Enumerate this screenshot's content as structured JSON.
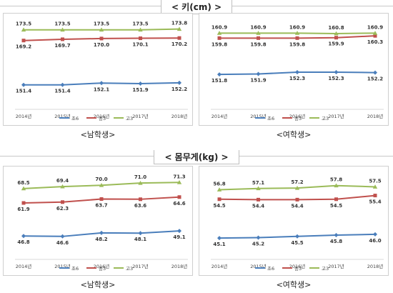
{
  "sections": [
    {
      "title": "<  키(cm)  >"
    },
    {
      "title": "<  몸무게(kg)  >"
    }
  ],
  "captions": [
    "<남학생>",
    "<여학생>",
    "<남학생>",
    "<여학생>"
  ],
  "legend": [
    "초6",
    "중3",
    "고3"
  ],
  "colors": {
    "초6": "#4a7ebb",
    "중3": "#c0504d",
    "고3": "#9bbb59"
  },
  "chart_data": [
    {
      "type": "line",
      "title": "",
      "x": [
        "2014년",
        "2015년",
        "2016년",
        "2017년",
        "2018년"
      ],
      "series": [
        {
          "name": "초6",
          "values": [
            151.4,
            151.4,
            152.1,
            151.9,
            152.2
          ]
        },
        {
          "name": "중3",
          "values": [
            169.2,
            169.7,
            170.0,
            170.1,
            170.2
          ]
        },
        {
          "name": "고3",
          "values": [
            173.5,
            173.5,
            173.5,
            173.5,
            173.8
          ]
        }
      ],
      "ylim": [
        145,
        176
      ],
      "grid": false,
      "legend": "bottom"
    },
    {
      "type": "line",
      "title": "",
      "x": [
        "2014년",
        "2015년",
        "2016년",
        "2017년",
        "2018년"
      ],
      "series": [
        {
          "name": "초6",
          "values": [
            151.8,
            151.9,
            152.3,
            152.3,
            152.2
          ]
        },
        {
          "name": "중3",
          "values": [
            159.8,
            159.8,
            159.8,
            159.9,
            160.3
          ]
        },
        {
          "name": "고3",
          "values": [
            160.9,
            160.9,
            160.9,
            160.8,
            160.9
          ]
        }
      ],
      "ylim": [
        146,
        163
      ],
      "grid": false,
      "legend": "bottom"
    },
    {
      "type": "line",
      "title": "",
      "x": [
        "2014년",
        "2015년",
        "2016년",
        "2017년",
        "2018년"
      ],
      "series": [
        {
          "name": "초6",
          "values": [
            46.8,
            46.6,
            48.2,
            48.1,
            49.1
          ]
        },
        {
          "name": "중3",
          "values": [
            61.9,
            62.3,
            63.7,
            63.6,
            64.6
          ]
        },
        {
          "name": "고3",
          "values": [
            68.5,
            69.4,
            70.0,
            71.0,
            71.3
          ]
        }
      ],
      "ylim": [
        40,
        74
      ],
      "grid": false,
      "legend": "bottom"
    },
    {
      "type": "line",
      "title": "",
      "x": [
        "2014년",
        "2015년",
        "2016년",
        "2017년",
        "2018년"
      ],
      "series": [
        {
          "name": "초6",
          "values": [
            45.1,
            45.2,
            45.5,
            45.8,
            46.0
          ]
        },
        {
          "name": "중3",
          "values": [
            54.5,
            54.4,
            54.4,
            54.5,
            55.4
          ]
        },
        {
          "name": "고3",
          "values": [
            56.8,
            57.1,
            57.2,
            57.8,
            57.5
          ]
        }
      ],
      "ylim": [
        42,
        60
      ],
      "grid": false,
      "legend": "bottom"
    }
  ]
}
